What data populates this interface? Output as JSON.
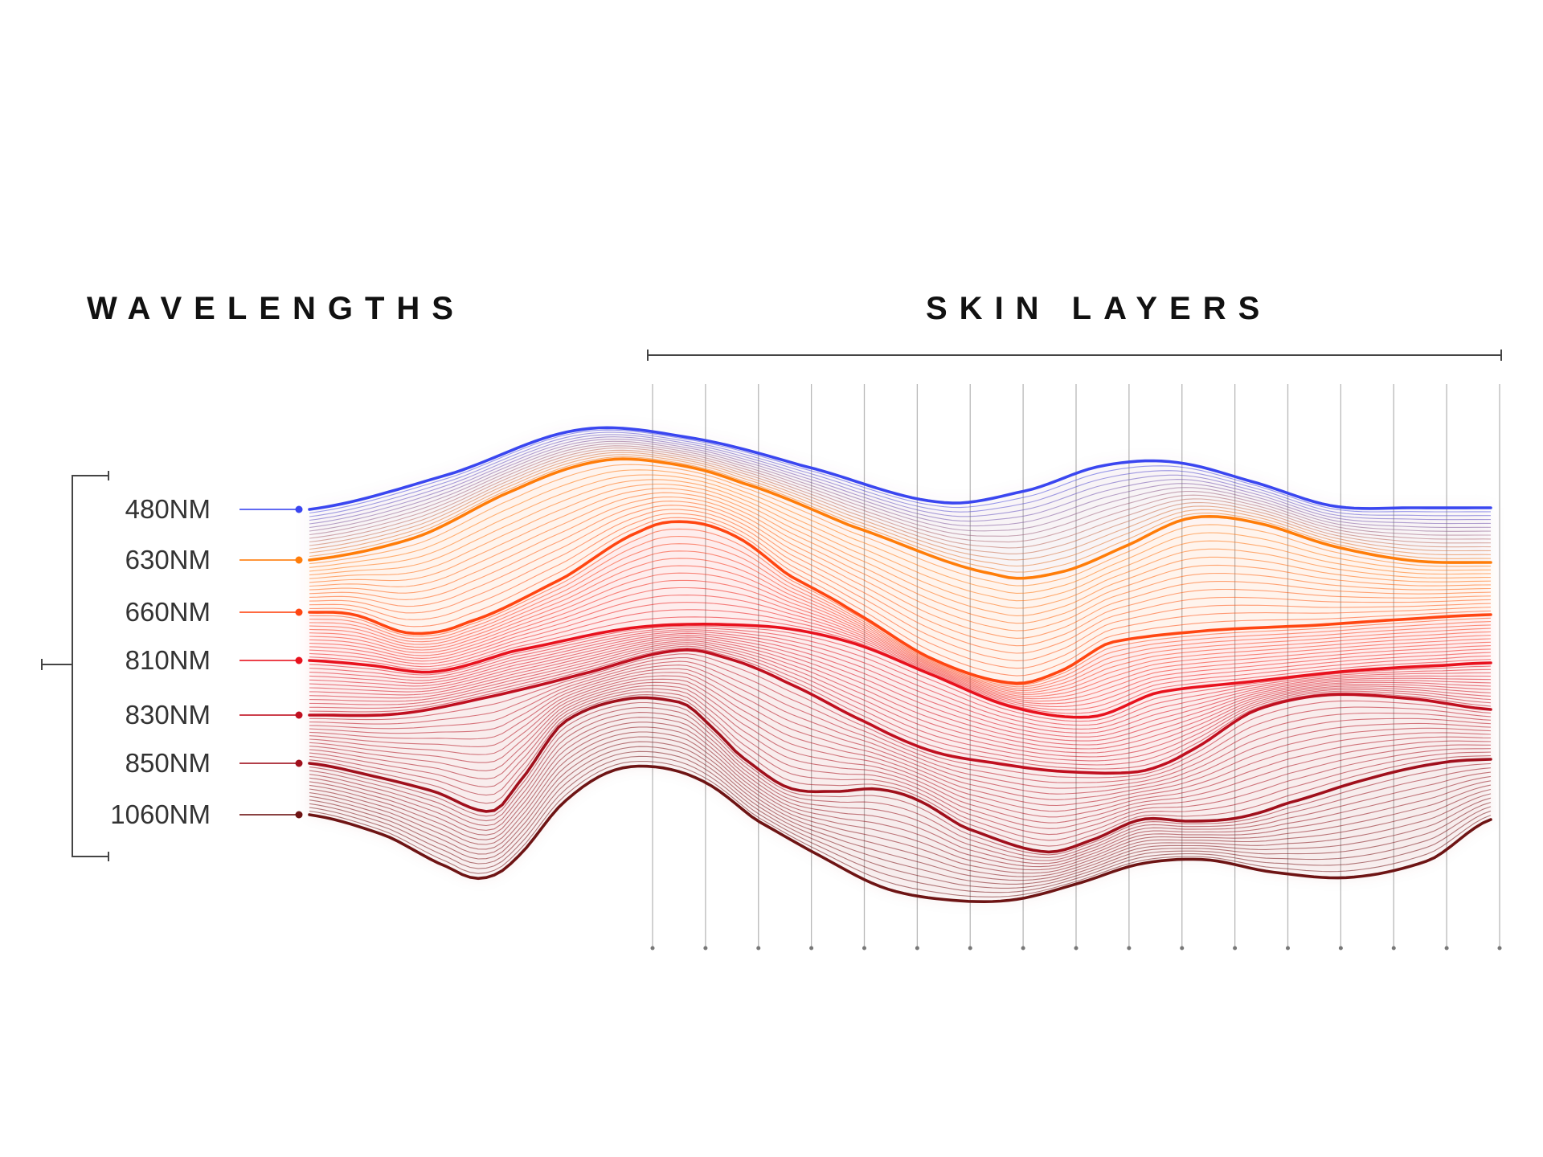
{
  "headings": {
    "wavelengths": "WAVELENGTHS",
    "skin_layers": "SKIN LAYERS"
  },
  "wavelengths": [
    {
      "label": "480NM",
      "color": "#3a46f0"
    },
    {
      "label": "630NM",
      "color": "#ff7d0a"
    },
    {
      "label": "660NM",
      "color": "#ff4612"
    },
    {
      "label": "810NM",
      "color": "#e8121e"
    },
    {
      "label": "830NM",
      "color": "#c01020"
    },
    {
      "label": "850NM",
      "color": "#a0101c"
    },
    {
      "label": "1060NM",
      "color": "#6e1414"
    }
  ],
  "skin_layer_divisions": 16
}
